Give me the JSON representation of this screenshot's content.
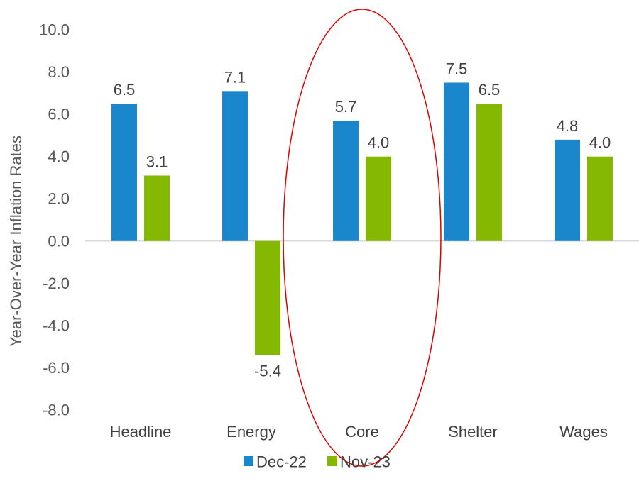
{
  "chart_data": {
    "type": "bar",
    "title": "",
    "xlabel": "",
    "ylabel": "Year-Over-Year Inflation Rates",
    "categories": [
      "Headline",
      "Energy",
      "Core",
      "Shelter",
      "Wages"
    ],
    "series": [
      {
        "name": "Dec-22",
        "values": [
          6.5,
          7.1,
          5.7,
          7.5,
          4.8
        ],
        "color": "#1a86cc"
      },
      {
        "name": "Nov-23",
        "values": [
          3.1,
          -5.4,
          4.0,
          6.5,
          4.0
        ],
        "color": "#85b800"
      }
    ],
    "data_labels": [
      [
        "6.5",
        "7.1",
        "5.7",
        "7.5",
        "4.8"
      ],
      [
        "3.1",
        "-5.4",
        "4.0",
        "6.5",
        "4.0"
      ]
    ],
    "ylim": [
      -8,
      10
    ],
    "yticks": [
      10,
      8,
      6,
      4,
      2,
      0,
      -2,
      -4,
      -6,
      -8
    ],
    "ytick_labels": [
      "10.0",
      "8.0",
      "6.0",
      "4.0",
      "2.0",
      "0.0",
      "-2.0",
      "-4.0",
      "-6.0",
      "-8.0"
    ],
    "grid": false,
    "legend_position": "bottom",
    "annotation": {
      "shape": "ellipse",
      "highlighted_category": "Core",
      "color": "#e00000"
    }
  }
}
